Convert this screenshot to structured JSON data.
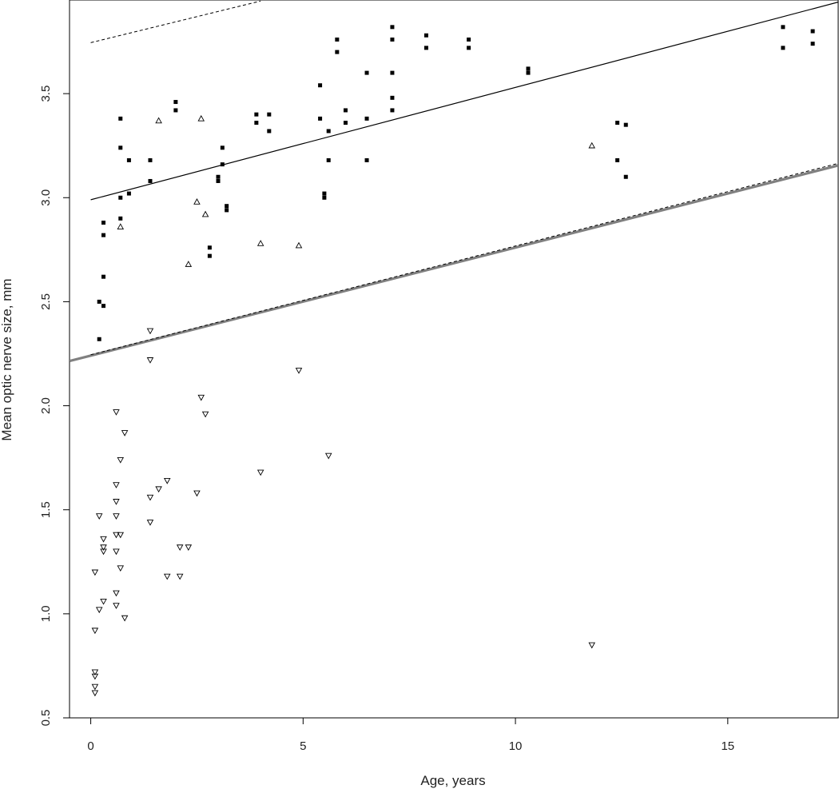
{
  "chart_data": {
    "type": "scatter",
    "title": "",
    "xlabel": "Age, years",
    "ylabel": "Mean optic nerve size, mm",
    "xlim": [
      -0.5,
      17.6
    ],
    "ylim": [
      0.5,
      3.95
    ],
    "x_ticks": [
      0,
      5,
      10,
      15
    ],
    "y_ticks": [
      0.5,
      1.0,
      1.5,
      2.0,
      2.5,
      3.0,
      3.5
    ],
    "x_tick_labels": [
      "0",
      "5",
      "10",
      "15"
    ],
    "y_tick_labels": [
      "0.5",
      "1.0",
      "1.5",
      "2.0",
      "2.5",
      "3.0",
      "3.5"
    ],
    "grid": false,
    "legend": "none",
    "series": [
      {
        "marker": "filled-square",
        "color": "#000000",
        "points": [
          [
            0.2,
            2.32
          ],
          [
            0.2,
            2.5
          ],
          [
            0.3,
            2.48
          ],
          [
            0.3,
            2.62
          ],
          [
            0.3,
            2.82
          ],
          [
            0.3,
            2.88
          ],
          [
            0.7,
            2.9
          ],
          [
            0.7,
            3.0
          ],
          [
            0.7,
            3.24
          ],
          [
            0.7,
            3.38
          ],
          [
            0.9,
            3.02
          ],
          [
            0.9,
            3.18
          ],
          [
            1.4,
            3.08
          ],
          [
            1.4,
            3.18
          ],
          [
            2.0,
            3.42
          ],
          [
            2.0,
            3.46
          ],
          [
            2.8,
            2.72
          ],
          [
            2.8,
            2.76
          ],
          [
            3.0,
            3.08
          ],
          [
            3.0,
            3.1
          ],
          [
            3.1,
            3.16
          ],
          [
            3.1,
            3.24
          ],
          [
            3.2,
            2.94
          ],
          [
            3.2,
            2.96
          ],
          [
            3.9,
            3.36
          ],
          [
            3.9,
            3.4
          ],
          [
            4.2,
            3.32
          ],
          [
            4.2,
            3.4
          ],
          [
            5.4,
            3.38
          ],
          [
            5.4,
            3.54
          ],
          [
            5.5,
            3.0
          ],
          [
            5.5,
            3.02
          ],
          [
            5.6,
            3.18
          ],
          [
            5.6,
            3.32
          ],
          [
            5.8,
            3.7
          ],
          [
            5.8,
            3.76
          ],
          [
            6.0,
            3.36
          ],
          [
            6.0,
            3.42
          ],
          [
            6.5,
            3.18
          ],
          [
            6.5,
            3.38
          ],
          [
            6.5,
            3.6
          ],
          [
            7.1,
            3.42
          ],
          [
            7.1,
            3.48
          ],
          [
            7.1,
            3.6
          ],
          [
            7.1,
            3.76
          ],
          [
            7.1,
            3.82
          ],
          [
            7.9,
            3.72
          ],
          [
            7.9,
            3.78
          ],
          [
            8.9,
            3.72
          ],
          [
            8.9,
            3.76
          ],
          [
            10.3,
            3.6
          ],
          [
            10.3,
            3.62
          ],
          [
            12.4,
            3.18
          ],
          [
            12.4,
            3.36
          ],
          [
            12.6,
            3.1
          ],
          [
            12.6,
            3.35
          ],
          [
            16.3,
            3.72
          ],
          [
            16.3,
            3.82
          ],
          [
            17.0,
            3.74
          ],
          [
            17.0,
            3.8
          ]
        ]
      },
      {
        "marker": "open-triangle-up",
        "color": "#000000",
        "points": [
          [
            0.7,
            2.86
          ],
          [
            1.6,
            3.37
          ],
          [
            2.3,
            2.68
          ],
          [
            2.5,
            2.98
          ],
          [
            2.6,
            3.38
          ],
          [
            2.7,
            2.92
          ],
          [
            4.0,
            2.78
          ],
          [
            4.9,
            2.77
          ],
          [
            11.8,
            3.25
          ]
        ]
      },
      {
        "marker": "open-triangle-down",
        "color": "#000000",
        "points": [
          [
            0.1,
            0.62
          ],
          [
            0.1,
            0.65
          ],
          [
            0.1,
            0.7
          ],
          [
            0.1,
            0.72
          ],
          [
            0.1,
            0.92
          ],
          [
            0.1,
            1.2
          ],
          [
            0.2,
            1.02
          ],
          [
            0.2,
            1.47
          ],
          [
            0.3,
            1.06
          ],
          [
            0.3,
            1.3
          ],
          [
            0.3,
            1.32
          ],
          [
            0.3,
            1.36
          ],
          [
            0.6,
            1.04
          ],
          [
            0.6,
            1.1
          ],
          [
            0.6,
            1.3
          ],
          [
            0.6,
            1.38
          ],
          [
            0.6,
            1.47
          ],
          [
            0.6,
            1.54
          ],
          [
            0.6,
            1.62
          ],
          [
            0.6,
            1.97
          ],
          [
            0.7,
            1.22
          ],
          [
            0.7,
            1.38
          ],
          [
            0.7,
            1.74
          ],
          [
            0.8,
            0.98
          ],
          [
            0.8,
            1.87
          ],
          [
            1.4,
            1.44
          ],
          [
            1.4,
            1.56
          ],
          [
            1.4,
            2.22
          ],
          [
            1.4,
            2.36
          ],
          [
            1.6,
            1.6
          ],
          [
            1.8,
            1.18
          ],
          [
            1.8,
            1.64
          ],
          [
            2.1,
            1.18
          ],
          [
            2.1,
            1.32
          ],
          [
            2.3,
            1.32
          ],
          [
            2.5,
            1.58
          ],
          [
            2.6,
            2.04
          ],
          [
            2.7,
            1.96
          ],
          [
            4.0,
            1.68
          ],
          [
            4.9,
            2.17
          ],
          [
            5.6,
            1.76
          ],
          [
            11.8,
            0.85
          ]
        ]
      }
    ],
    "reference_lines": [
      {
        "style": "solid",
        "color": "#000000",
        "width": 1.2,
        "x": [
          0,
          17.6
        ],
        "y": [
          2.99,
          3.94
        ]
      },
      {
        "style": "solid",
        "color": "#808080",
        "width": 3.2,
        "x": [
          -0.5,
          17.6
        ],
        "y": [
          2.215,
          3.155
        ]
      },
      {
        "style": "dashed",
        "color": "#000000",
        "width": 1.0,
        "x": [
          0,
          17.6
        ],
        "y": [
          2.245,
          3.165
        ]
      },
      {
        "style": "dashed",
        "color": "#000000",
        "width": 1.0,
        "x": [
          0,
          4.0
        ],
        "y": [
          3.745,
          3.945
        ]
      }
    ]
  }
}
